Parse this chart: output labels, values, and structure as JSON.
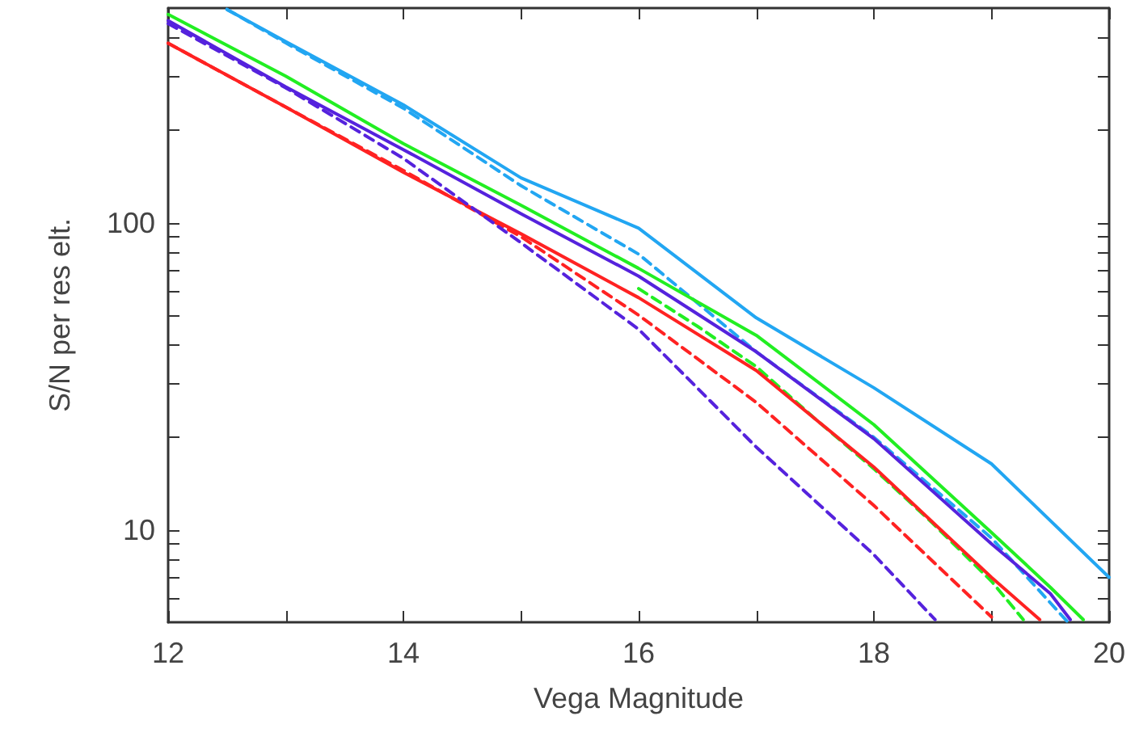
{
  "chart_data": {
    "type": "line",
    "xlabel": "Vega Magnitude",
    "ylabel": "S/N per res elt.",
    "log": "y",
    "grid": false,
    "marker": "none",
    "xlim": [
      12,
      20
    ],
    "ylim": [
      5,
      500
    ],
    "xticks": [
      12,
      {
        "value": 13,
        "label": null
      },
      14,
      {
        "value": 15,
        "label": null
      },
      16,
      {
        "value": 17,
        "label": null
      },
      18,
      {
        "value": 19,
        "label": null
      },
      20
    ],
    "yticks": [
      {
        "value": 6,
        "label": null
      },
      {
        "value": 7,
        "label": null
      },
      {
        "value": 8,
        "label": null
      },
      {
        "value": 9,
        "label": null
      },
      10,
      {
        "value": 20,
        "label": null
      },
      {
        "value": 30,
        "label": null
      },
      {
        "value": 40,
        "label": null
      },
      {
        "value": 50,
        "label": null
      },
      {
        "value": 60,
        "label": null
      },
      {
        "value": 70,
        "label": null
      },
      {
        "value": 80,
        "label": null
      },
      {
        "value": 90,
        "label": null
      },
      100,
      {
        "value": 200,
        "label": null
      },
      {
        "value": 300,
        "label": null
      },
      {
        "value": 400,
        "label": null
      }
    ],
    "series": [
      {
        "color": "#22a6f2",
        "line_style": "solid",
        "x": [
          12.5,
          13,
          14,
          15,
          16,
          17,
          18,
          19,
          20
        ],
        "values": [
          495,
          389,
          242,
          140,
          96,
          49,
          29,
          16.4,
          7.0
        ]
      },
      {
        "color": "#22a6f2",
        "line_style": "dashed",
        "x": [
          12.5,
          13,
          14,
          15,
          16,
          17,
          18,
          19,
          19.65
        ],
        "values": [
          495,
          385,
          236,
          132,
          79,
          38,
          20,
          9.4,
          5.0
        ]
      },
      {
        "color": "#22ee22",
        "line_style": "solid",
        "x": [
          12,
          13,
          14,
          15,
          16,
          17,
          18,
          19,
          19.5,
          19.78
        ],
        "values": [
          477,
          300,
          181,
          114,
          71,
          43,
          22,
          9.8,
          6.5,
          5.1
        ]
      },
      {
        "color": "#5522dd",
        "line_style": "solid",
        "x": [
          12,
          13,
          14,
          15,
          16,
          17,
          18,
          19,
          19.5,
          19.67
        ],
        "values": [
          455,
          277,
          173,
          107,
          67,
          38,
          19.8,
          9.0,
          6.2,
          5.1
        ]
      },
      {
        "color": "#22ee22",
        "line_style": "dashed",
        "x": [
          16,
          16.5,
          17,
          17.5,
          18,
          18.5,
          19,
          19.27
        ],
        "values": [
          61,
          46,
          34,
          23,
          15.8,
          10.5,
          6.8,
          5.1
        ]
      },
      {
        "color": "#ff2222",
        "line_style": "solid",
        "x": [
          12,
          13,
          14,
          15,
          16,
          17,
          18,
          19,
          19.41
        ],
        "values": [
          384,
          238,
          146,
          92,
          57,
          33,
          16,
          7.0,
          5.1
        ]
      },
      {
        "color": "#ff2222",
        "line_style": "dashed",
        "x": [
          12,
          13,
          14,
          15,
          16,
          17,
          18,
          19
        ],
        "values": [
          384,
          238,
          148,
          90,
          50,
          26,
          12,
          5.2
        ]
      },
      {
        "color": "#5522dd",
        "line_style": "dashed",
        "x": [
          12,
          13,
          14,
          15,
          16,
          17,
          18,
          18.52
        ],
        "values": [
          445,
          275,
          162,
          86,
          45,
          18.6,
          8.3,
          5.1
        ]
      }
    ]
  }
}
